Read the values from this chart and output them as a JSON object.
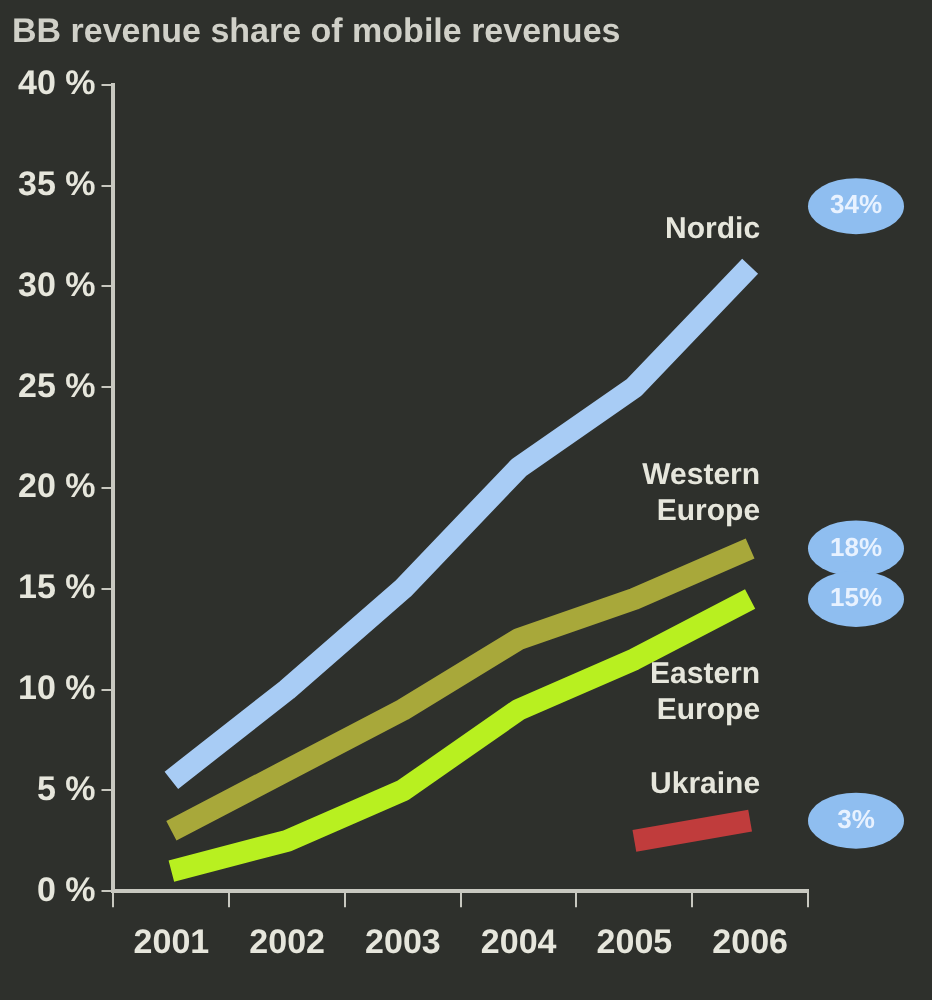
{
  "chart_data": {
    "type": "line",
    "title": "BB revenue share of mobile revenues",
    "categories": [
      "2001",
      "2002",
      "2003",
      "2004",
      "2005",
      "2006"
    ],
    "series": [
      {
        "name": "Nordic",
        "color": "#a8ccf5",
        "values": [
          5.5,
          10,
          15,
          21,
          25,
          31
        ]
      },
      {
        "name": "Western Europe",
        "color": "#a8a83a",
        "values": [
          3,
          6,
          9,
          12.5,
          14.5,
          17
        ]
      },
      {
        "name": "Eastern Europe",
        "color": "#b8f020",
        "values": [
          1,
          2.5,
          5,
          9,
          11.5,
          14.5
        ]
      },
      {
        "name": "Ukraine",
        "color": "#c03c3c",
        "values": [
          null,
          null,
          null,
          null,
          2.5,
          3.5
        ]
      }
    ],
    "ylim": [
      0,
      40
    ],
    "yticks": [
      {
        "value": 0,
        "label": "0 %"
      },
      {
        "value": 5,
        "label": "5 %"
      },
      {
        "value": 10,
        "label": "10 %"
      },
      {
        "value": 15,
        "label": "15 %"
      },
      {
        "value": 20,
        "label": "20 %"
      },
      {
        "value": 25,
        "label": "25 %"
      },
      {
        "value": 30,
        "label": "30 %"
      },
      {
        "value": 35,
        "label": "35 %"
      },
      {
        "value": 40,
        "label": "40 %"
      }
    ],
    "annotations": [
      "34%",
      "18%",
      "15%",
      "3%"
    ],
    "grid": false,
    "legend": false,
    "marker": "none",
    "line_style": "solid"
  }
}
